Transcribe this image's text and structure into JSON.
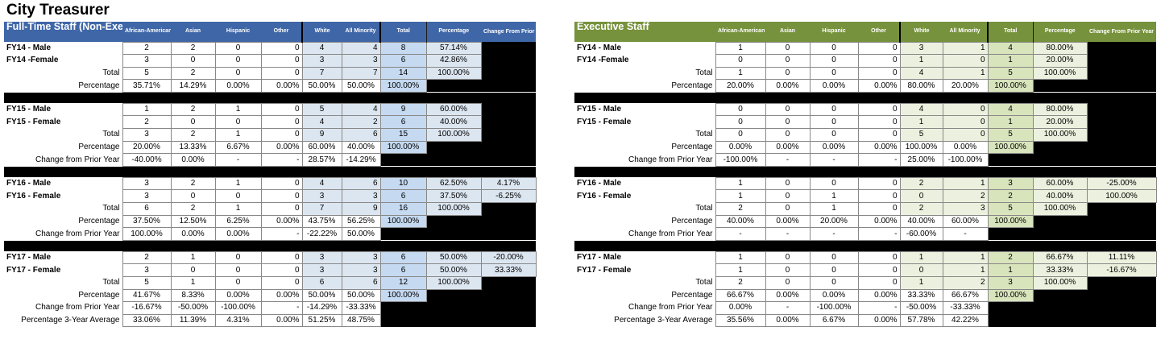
{
  "page_title": "City Treasurer",
  "columns": [
    "African-American",
    "Asian",
    "Hispanic",
    "Other",
    "White",
    "All Minority",
    "Total",
    "Percentage",
    "Change From Prior Year"
  ],
  "left": {
    "title": "Full-Time Staff (Non-Exec.)",
    "blocks": [
      {
        "rows": [
          {
            "label": "FY14 - Male",
            "cells": [
              "2",
              "2",
              "0",
              "0",
              "4",
              "4",
              "8",
              "57.14%",
              ""
            ]
          },
          {
            "label": "FY14  -Female",
            "cells": [
              "3",
              "0",
              "0",
              "0",
              "3",
              "3",
              "6",
              "42.86%",
              ""
            ]
          },
          {
            "label": "Total",
            "cells": [
              "5",
              "2",
              "0",
              "0",
              "7",
              "7",
              "14",
              "100.00%",
              ""
            ]
          },
          {
            "label": "Percentage",
            "cells": [
              "35.71%",
              "14.29%",
              "0.00%",
              "0.00%",
              "50.00%",
              "50.00%",
              "100.00%",
              "",
              ""
            ]
          }
        ]
      },
      {
        "rows": [
          {
            "label": "FY15 - Male",
            "cells": [
              "1",
              "2",
              "1",
              "0",
              "5",
              "4",
              "9",
              "60.00%",
              ""
            ]
          },
          {
            "label": "FY15 - Female",
            "cells": [
              "2",
              "0",
              "0",
              "0",
              "4",
              "2",
              "6",
              "40.00%",
              ""
            ]
          },
          {
            "label": "Total",
            "cells": [
              "3",
              "2",
              "1",
              "0",
              "9",
              "6",
              "15",
              "100.00%",
              ""
            ]
          },
          {
            "label": "Percentage",
            "cells": [
              "20.00%",
              "13.33%",
              "6.67%",
              "0.00%",
              "60.00%",
              "40.00%",
              "100.00%",
              "",
              ""
            ]
          },
          {
            "label": "Change from Prior Year",
            "cells": [
              "-40.00%",
              "0.00%",
              "-",
              "-",
              "28.57%",
              "-14.29%",
              "",
              "",
              ""
            ]
          }
        ]
      },
      {
        "rows": [
          {
            "label": "FY16 - Male",
            "cells": [
              "3",
              "2",
              "1",
              "0",
              "4",
              "6",
              "10",
              "62.50%",
              "4.17%"
            ]
          },
          {
            "label": "FY16 - Female",
            "cells": [
              "3",
              "0",
              "0",
              "0",
              "3",
              "3",
              "6",
              "37.50%",
              "-6.25%"
            ]
          },
          {
            "label": "Total",
            "cells": [
              "6",
              "2",
              "1",
              "0",
              "7",
              "9",
              "16",
              "100.00%",
              ""
            ]
          },
          {
            "label": "Percentage",
            "cells": [
              "37.50%",
              "12.50%",
              "6.25%",
              "0.00%",
              "43.75%",
              "56.25%",
              "100.00%",
              "",
              ""
            ]
          },
          {
            "label": "Change from Prior Year",
            "cells": [
              "100.00%",
              "0.00%",
              "0.00%",
              "-",
              "-22.22%",
              "50.00%",
              "",
              "",
              ""
            ]
          }
        ]
      },
      {
        "rows": [
          {
            "label": "FY17 - Male",
            "cells": [
              "2",
              "1",
              "0",
              "0",
              "3",
              "3",
              "6",
              "50.00%",
              "-20.00%"
            ]
          },
          {
            "label": "FY17 - Female",
            "cells": [
              "3",
              "0",
              "0",
              "0",
              "3",
              "3",
              "6",
              "50.00%",
              "33.33%"
            ]
          },
          {
            "label": "Total",
            "cells": [
              "5",
              "1",
              "0",
              "0",
              "6",
              "6",
              "12",
              "100.00%",
              ""
            ]
          },
          {
            "label": "Percentage",
            "cells": [
              "41.67%",
              "8.33%",
              "0.00%",
              "0.00%",
              "50.00%",
              "50.00%",
              "100.00%",
              "",
              ""
            ]
          },
          {
            "label": "Change from Prior Year",
            "cells": [
              "-16.67%",
              "-50.00%",
              "-100.00%",
              "-",
              "-14.29%",
              "-33.33%",
              "",
              "",
              ""
            ]
          },
          {
            "label": "Percentage 3-Year Average",
            "cells": [
              "33.06%",
              "11.39%",
              "4.31%",
              "0.00%",
              "51.25%",
              "48.75%",
              "",
              "",
              ""
            ]
          }
        ]
      }
    ]
  },
  "right": {
    "title": "Executive Staff",
    "blocks": [
      {
        "rows": [
          {
            "label": "FY14 - Male",
            "cells": [
              "1",
              "0",
              "0",
              "0",
              "3",
              "1",
              "4",
              "80.00%",
              ""
            ]
          },
          {
            "label": "FY14  -Female",
            "cells": [
              "0",
              "0",
              "0",
              "0",
              "1",
              "0",
              "1",
              "20.00%",
              ""
            ]
          },
          {
            "label": "Total",
            "cells": [
              "1",
              "0",
              "0",
              "0",
              "4",
              "1",
              "5",
              "100.00%",
              ""
            ]
          },
          {
            "label": "Percentage",
            "cells": [
              "20.00%",
              "0.00%",
              "0.00%",
              "0.00%",
              "80.00%",
              "20.00%",
              "100.00%",
              "",
              ""
            ]
          }
        ]
      },
      {
        "rows": [
          {
            "label": "FY15 - Male",
            "cells": [
              "0",
              "0",
              "0",
              "0",
              "4",
              "0",
              "4",
              "80.00%",
              ""
            ]
          },
          {
            "label": "FY15 - Female",
            "cells": [
              "0",
              "0",
              "0",
              "0",
              "1",
              "0",
              "1",
              "20.00%",
              ""
            ]
          },
          {
            "label": "Total",
            "cells": [
              "0",
              "0",
              "0",
              "0",
              "5",
              "0",
              "5",
              "100.00%",
              ""
            ]
          },
          {
            "label": "Percentage",
            "cells": [
              "0.00%",
              "0.00%",
              "0.00%",
              "0.00%",
              "100.00%",
              "0.00%",
              "100.00%",
              "",
              ""
            ]
          },
          {
            "label": "Change from Prior Year",
            "cells": [
              "-100.00%",
              "-",
              "-",
              "-",
              "25.00%",
              "-100.00%",
              "",
              "",
              ""
            ]
          }
        ]
      },
      {
        "rows": [
          {
            "label": "FY16 - Male",
            "cells": [
              "1",
              "0",
              "0",
              "0",
              "2",
              "1",
              "3",
              "60.00%",
              "-25.00%"
            ]
          },
          {
            "label": "FY16 - Female",
            "cells": [
              "1",
              "0",
              "1",
              "0",
              "0",
              "2",
              "2",
              "40.00%",
              "100.00%"
            ]
          },
          {
            "label": "Total",
            "cells": [
              "2",
              "0",
              "1",
              "0",
              "2",
              "3",
              "5",
              "100.00%",
              ""
            ]
          },
          {
            "label": "Percentage",
            "cells": [
              "40.00%",
              "0.00%",
              "20.00%",
              "0.00%",
              "40.00%",
              "60.00%",
              "100.00%",
              "",
              ""
            ]
          },
          {
            "label": "Change from Prior Year",
            "cells": [
              "-",
              "-",
              "-",
              "-",
              "-60.00%",
              "-",
              "",
              "",
              ""
            ]
          }
        ]
      },
      {
        "rows": [
          {
            "label": "FY17 - Male",
            "cells": [
              "1",
              "0",
              "0",
              "0",
              "1",
              "1",
              "2",
              "66.67%",
              "11.11%"
            ]
          },
          {
            "label": "FY17 - Female",
            "cells": [
              "1",
              "0",
              "0",
              "0",
              "0",
              "1",
              "1",
              "33.33%",
              "-16.67%"
            ]
          },
          {
            "label": "Total",
            "cells": [
              "2",
              "0",
              "0",
              "0",
              "1",
              "2",
              "3",
              "100.00%",
              ""
            ]
          },
          {
            "label": "Percentage",
            "cells": [
              "66.67%",
              "0.00%",
              "0.00%",
              "0.00%",
              "33.33%",
              "66.67%",
              "100.00%",
              "",
              ""
            ]
          },
          {
            "label": "Change from Prior Year",
            "cells": [
              "0.00%",
              "-",
              "-100.00%",
              "-",
              "-50.00%",
              "-33.33%",
              "",
              "",
              ""
            ]
          },
          {
            "label": "Percentage 3-Year Average",
            "cells": [
              "35.56%",
              "0.00%",
              "6.67%",
              "0.00%",
              "57.78%",
              "42.22%",
              "",
              "",
              ""
            ]
          }
        ]
      }
    ]
  },
  "colors": {
    "left_header": "#3f66a7",
    "right_header": "#77923c"
  }
}
